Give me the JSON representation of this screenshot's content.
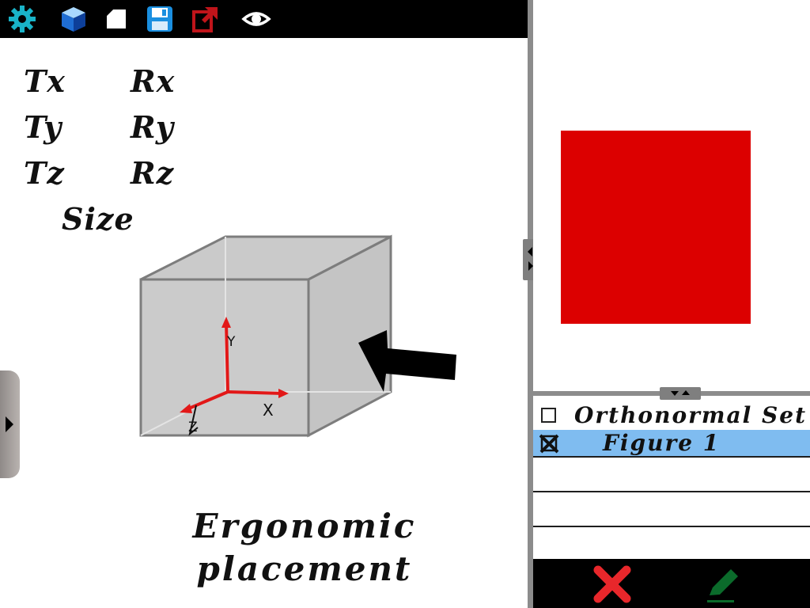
{
  "toolbar": {
    "icons": [
      "gear-icon",
      "cube-icon",
      "new-page-icon",
      "save-icon",
      "export-icon",
      "eye-icon"
    ]
  },
  "params": {
    "tx": "Tx",
    "rx": "Rx",
    "ty": "Ty",
    "ry": "Ry",
    "tz": "Tz",
    "rz": "Rz",
    "size": "Size"
  },
  "scene": {
    "axis_y": "Y",
    "axis_x": "X",
    "axis_z": "Z"
  },
  "caption": {
    "line1": "Ergonomic",
    "line2": "placement"
  },
  "preview": {
    "color": "#dc0000"
  },
  "layers": [
    {
      "label": "Orthonormal Set",
      "checked": false,
      "selected": false
    },
    {
      "label": "Figure 1",
      "checked": true,
      "selected": true
    }
  ],
  "bottom_bar": {
    "cancel_icon": "close-icon",
    "edit_icon": "pencil-icon"
  },
  "colors": {
    "toolbar_bg": "#000000",
    "accent_gear": "#19b3c8",
    "selection": "#7fbcf0",
    "cancel": "#e8272b",
    "confirm": "#0b6b2b"
  }
}
